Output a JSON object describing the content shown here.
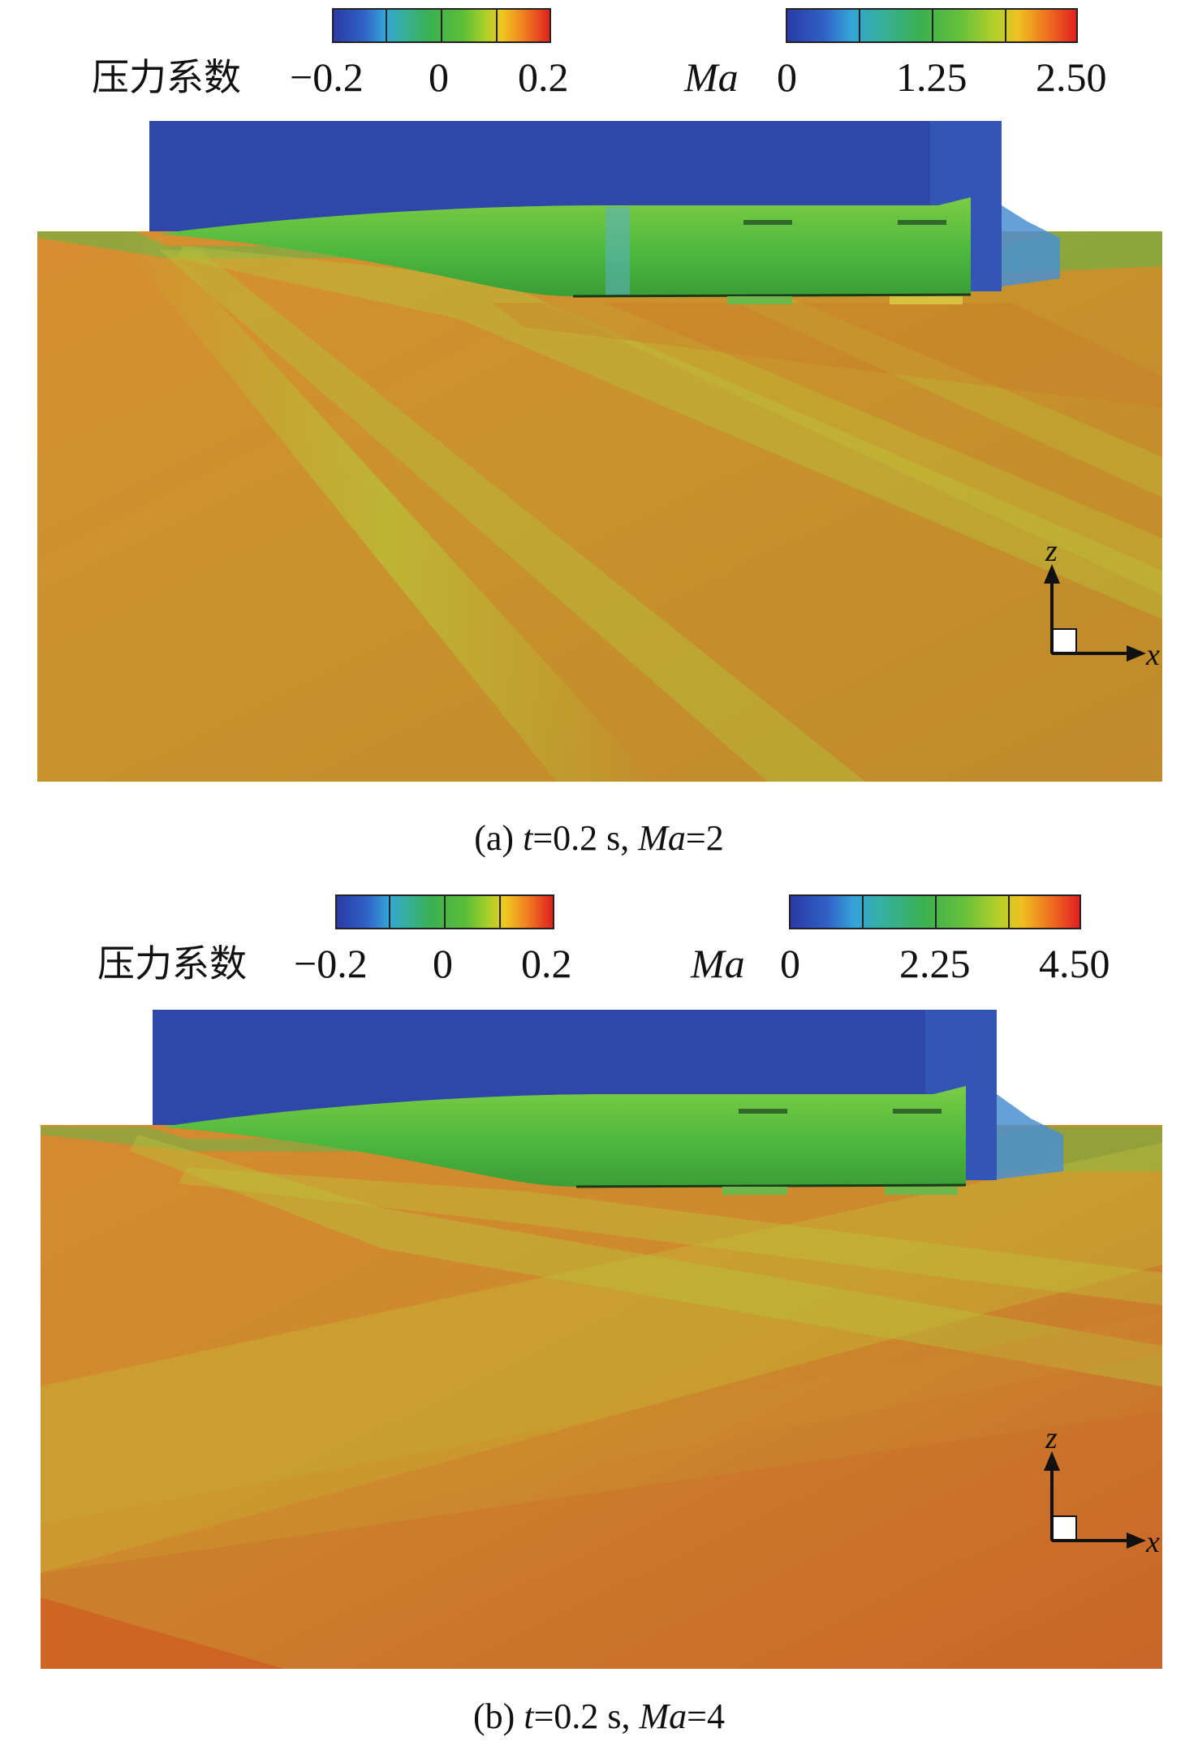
{
  "panels": [
    {
      "id": "a",
      "cp_legend": {
        "title": "压力系数",
        "ticks": [
          "−0.2",
          "0",
          "0.2"
        ]
      },
      "ma_legend": {
        "title": "Ma",
        "ticks": [
          "0",
          "1.25",
          "2.50"
        ]
      },
      "axes": {
        "vertical": "z",
        "horizontal": "x"
      },
      "caption": {
        "label": "(a) ",
        "t_var": "t",
        "t_value": "=0.2 s, ",
        "ma_var": "Ma",
        "ma_value": "=2"
      }
    },
    {
      "id": "b",
      "cp_legend": {
        "title": "压力系数",
        "ticks": [
          "−0.2",
          "0",
          "0.2"
        ]
      },
      "ma_legend": {
        "title": "Ma",
        "ticks": [
          "0",
          "2.25",
          "4.50"
        ]
      },
      "axes": {
        "vertical": "z",
        "horizontal": "x"
      },
      "caption": {
        "label": "(b) ",
        "t_var": "t",
        "t_value": "=0.2 s, ",
        "ma_var": "Ma",
        "ma_value": "=4"
      }
    }
  ],
  "colors": {
    "low": "#2a3aa6",
    "mid": "#3ab050",
    "high": "#e02020",
    "body": "#4cb83c",
    "field_a": "#c88a2e",
    "field_b": "#d07a2a"
  }
}
